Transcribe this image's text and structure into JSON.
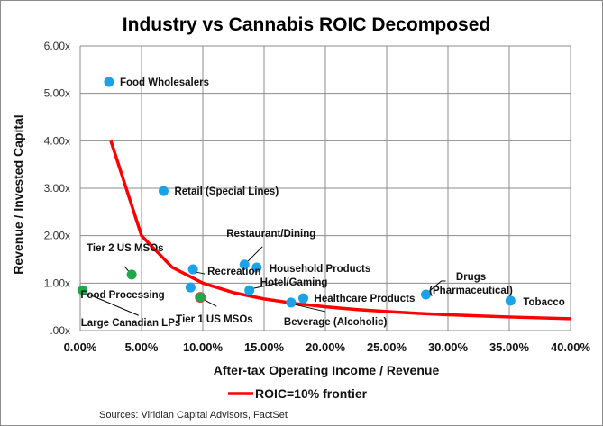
{
  "chart_data": {
    "type": "scatter",
    "title": "Industry vs Cannabis ROIC Decomposed",
    "xlabel": "After-tax Operating Income / Revenue",
    "ylabel": "Revenue / Invested Capital",
    "xlim": [
      0,
      40
    ],
    "ylim": [
      0,
      6
    ],
    "x_unit": "%",
    "grid": true,
    "x_ticks": [
      "0.00%",
      "5.00%",
      "10.00%",
      "15.00%",
      "20.00%",
      "25.00%",
      "30.00%",
      "35.00%",
      "40.00%"
    ],
    "x_tick_values": [
      0,
      5,
      10,
      15,
      20,
      25,
      30,
      35,
      40
    ],
    "y_ticks": [
      ".00x",
      "1.00x",
      "2.00x",
      "3.00x",
      "4.00x",
      "5.00x",
      "6.00x"
    ],
    "y_tick_values": [
      0,
      1,
      2,
      3,
      4,
      5,
      6
    ],
    "colors": {
      "industry": "#1aa3e8",
      "cannabis": "#1fa84a",
      "frontier": "#ff0000"
    },
    "points": [
      {
        "label": "Food Wholesalers",
        "x": 2.35,
        "y": 5.24,
        "group": "industry"
      },
      {
        "label": "Retail (Special Lines)",
        "x": 6.8,
        "y": 2.94,
        "group": "industry"
      },
      {
        "label": "Tier 2 US MSOs",
        "x": 4.2,
        "y": 1.18,
        "group": "cannabis"
      },
      {
        "label": "Large Canadian LPs",
        "x": 0.2,
        "y": 0.85,
        "group": "cannabis"
      },
      {
        "label": "Food Processing",
        "x": 9.0,
        "y": 0.91,
        "group": "industry"
      },
      {
        "label": "Recreation",
        "x": 9.2,
        "y": 1.29,
        "group": "industry"
      },
      {
        "label": "Tier 1 US MSOs",
        "x": 9.8,
        "y": 0.7,
        "group": "cannabis"
      },
      {
        "label": "Restaurant/Dining",
        "x": 13.4,
        "y": 1.39,
        "group": "industry"
      },
      {
        "label": "Household Products",
        "x": 14.4,
        "y": 1.33,
        "group": "industry"
      },
      {
        "label": "Hotel/Gaming",
        "x": 13.8,
        "y": 0.85,
        "group": "industry"
      },
      {
        "label": "Beverage (Alcoholic)",
        "x": 17.2,
        "y": 0.59,
        "group": "industry"
      },
      {
        "label": "Healthcare Products",
        "x": 18.2,
        "y": 0.68,
        "group": "industry"
      },
      {
        "label": "Drugs (Pharmaceutical)",
        "x": 28.2,
        "y": 0.76,
        "group": "industry"
      },
      {
        "label": "Tobacco",
        "x": 35.1,
        "y": 0.63,
        "group": "industry"
      }
    ],
    "series": [
      {
        "name": "ROIC=10% frontier",
        "type": "line",
        "x": [
          2.5,
          5,
          7.5,
          10,
          12.5,
          15,
          17.5,
          20,
          22.5,
          25,
          27.5,
          30,
          32.5,
          35,
          37.5,
          40
        ],
        "y": [
          4.0,
          2.0,
          1.333,
          1.0,
          0.8,
          0.667,
          0.571,
          0.5,
          0.444,
          0.4,
          0.364,
          0.333,
          0.308,
          0.286,
          0.267,
          0.25
        ]
      }
    ],
    "legend": {
      "placement": "bottom-center",
      "entries": [
        "ROIC=10% frontier"
      ]
    },
    "source": "Sources: Viridian Capital Advisors, FactSet"
  }
}
